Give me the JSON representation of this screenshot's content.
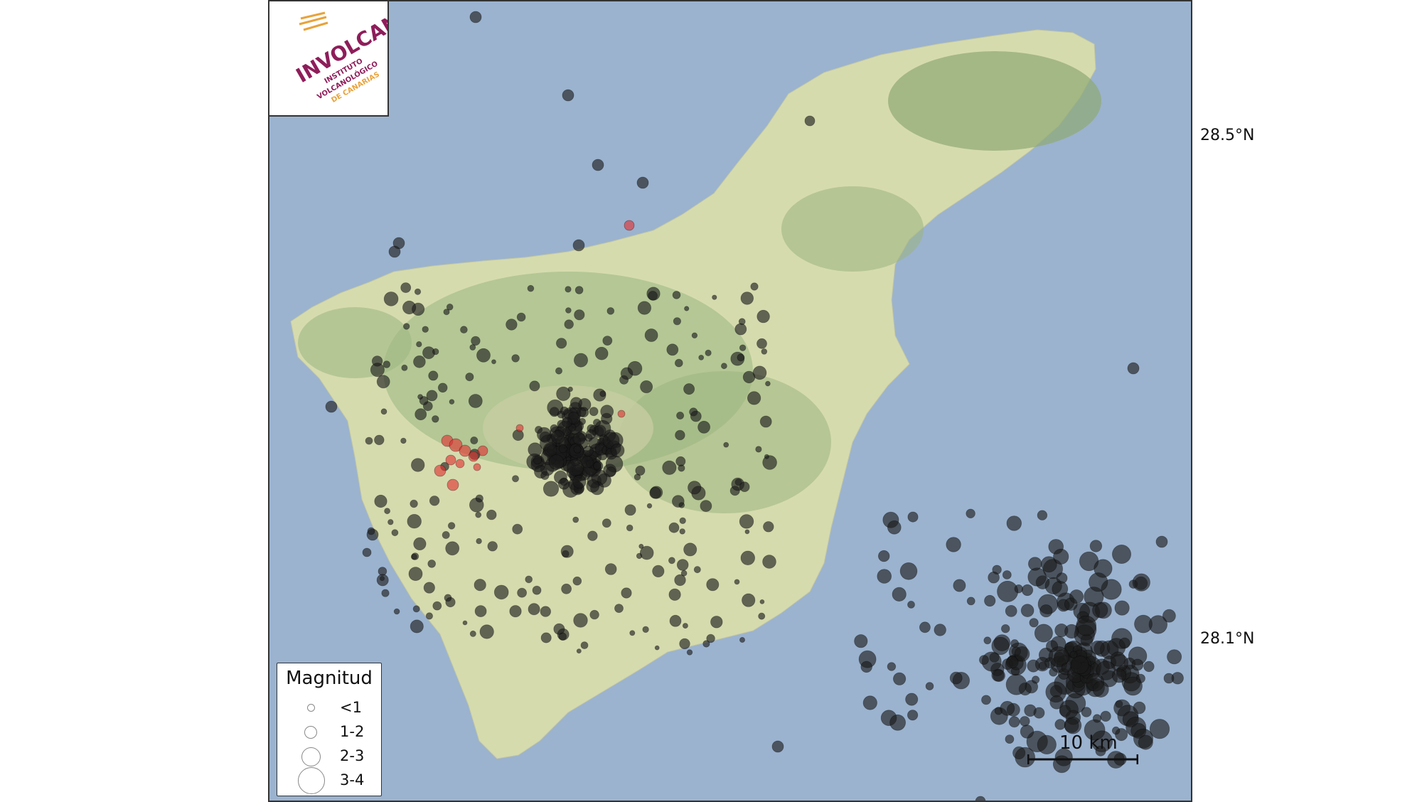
{
  "latitude_labels": {
    "north": "28.5°N",
    "south": "28.1°N"
  },
  "logo": {
    "brand": "INVOLCAN",
    "line1": "INSTITUTO",
    "line2": "VOLCANOLÓGICO",
    "line3": "DE CANARIAS"
  },
  "legend": {
    "title": "Magnitud",
    "items": [
      {
        "label": "<1"
      },
      {
        "label": "1-2"
      },
      {
        "label": "2-3"
      },
      {
        "label": "3-4"
      }
    ]
  },
  "scale_bar": {
    "label": "10 km"
  },
  "colors": {
    "sea": "#9bb3cf",
    "land": "#d8dcb0",
    "highland": "#a9c08e",
    "event_dark": "#1a1a1a",
    "event_recent": "#e03030",
    "logo_purple": "#8e1d5a",
    "logo_orange": "#e8a33b"
  }
}
